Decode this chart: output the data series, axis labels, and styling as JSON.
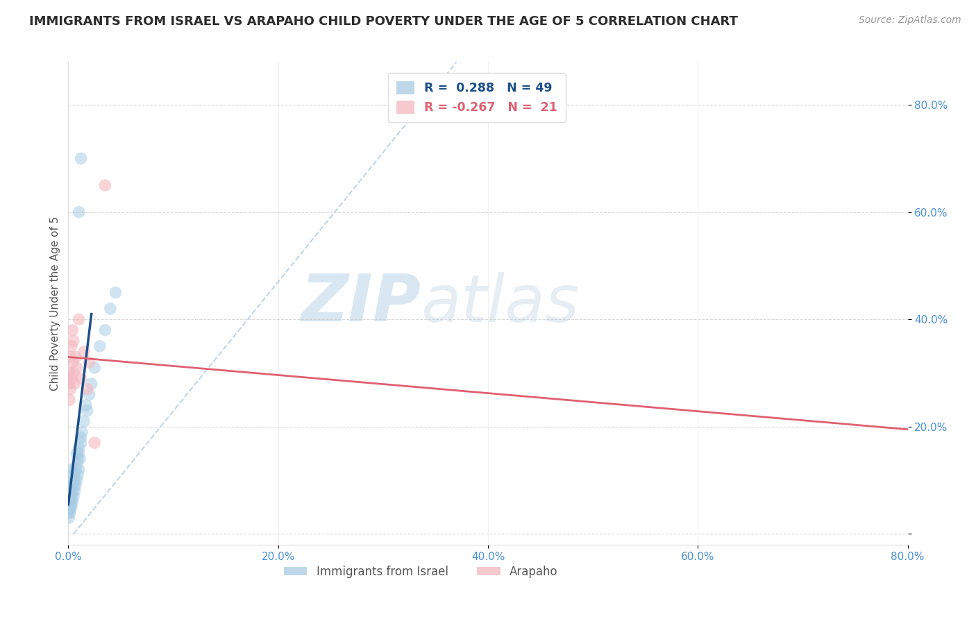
{
  "title": "IMMIGRANTS FROM ISRAEL VS ARAPAHO CHILD POVERTY UNDER THE AGE OF 5 CORRELATION CHART",
  "source": "Source: ZipAtlas.com",
  "ylabel": "Child Poverty Under the Age of 5",
  "xlim": [
    0.0,
    0.8
  ],
  "ylim": [
    -0.02,
    0.88
  ],
  "ytick_positions": [
    0.0,
    0.2,
    0.4,
    0.6,
    0.8
  ],
  "xtick_positions": [
    0.0,
    0.2,
    0.4,
    0.6,
    0.8
  ],
  "blue_R": "0.288",
  "blue_N": "49",
  "pink_R": "-0.267",
  "pink_N": "21",
  "legend_bottom_blue": "Immigrants from Israel",
  "legend_bottom_pink": "Arapaho",
  "blue_scatter": {
    "x": [
      0.0005,
      0.0008,
      0.001,
      0.001,
      0.0012,
      0.0015,
      0.0015,
      0.002,
      0.002,
      0.002,
      0.0025,
      0.003,
      0.003,
      0.003,
      0.003,
      0.004,
      0.004,
      0.004,
      0.005,
      0.005,
      0.005,
      0.006,
      0.006,
      0.007,
      0.007,
      0.008,
      0.008,
      0.009,
      0.009,
      0.01,
      0.01,
      0.011,
      0.012,
      0.013,
      0.015,
      0.017,
      0.012,
      0.01,
      0.018,
      0.02,
      0.022,
      0.025,
      0.03,
      0.035,
      0.04,
      0.045,
      0.012,
      0.01,
      0.008
    ],
    "y": [
      0.03,
      0.05,
      0.04,
      0.06,
      0.05,
      0.04,
      0.07,
      0.05,
      0.06,
      0.08,
      0.06,
      0.05,
      0.07,
      0.09,
      0.12,
      0.06,
      0.08,
      0.1,
      0.07,
      0.09,
      0.11,
      0.08,
      0.1,
      0.09,
      0.12,
      0.1,
      0.13,
      0.11,
      0.14,
      0.12,
      0.15,
      0.14,
      0.17,
      0.19,
      0.21,
      0.24,
      0.7,
      0.6,
      0.23,
      0.26,
      0.28,
      0.31,
      0.35,
      0.38,
      0.42,
      0.45,
      0.18,
      0.16,
      0.15
    ]
  },
  "pink_scatter": {
    "x": [
      0.0005,
      0.001,
      0.001,
      0.002,
      0.002,
      0.003,
      0.003,
      0.004,
      0.004,
      0.005,
      0.005,
      0.006,
      0.007,
      0.008,
      0.01,
      0.012,
      0.015,
      0.018,
      0.02,
      0.025,
      0.035
    ],
    "y": [
      0.28,
      0.3,
      0.25,
      0.33,
      0.27,
      0.35,
      0.29,
      0.38,
      0.32,
      0.3,
      0.36,
      0.28,
      0.33,
      0.31,
      0.4,
      0.29,
      0.34,
      0.27,
      0.32,
      0.17,
      0.65
    ]
  },
  "blue_line": {
    "x": [
      0.0,
      0.022
    ],
    "y": [
      0.055,
      0.41
    ]
  },
  "pink_line": {
    "x": [
      0.0,
      0.8
    ],
    "y": [
      0.33,
      0.195
    ]
  },
  "blue_dash": {
    "x": [
      0.005,
      0.37
    ],
    "y": [
      0.0,
      0.88
    ]
  },
  "watermark_zip": "ZIP",
  "watermark_atlas": "atlas",
  "background_color": "#ffffff",
  "title_color": "#2c2c2c",
  "axis_label_color": "#555555",
  "tick_color": "#4a90d9",
  "grid_color": "#c8c8c8",
  "blue_color": "#a8cce4",
  "pink_color": "#f4b8c0",
  "blue_line_color": "#1a4f8a",
  "pink_line_color": "#e06070",
  "blue_dash_color": "#b0cce0"
}
